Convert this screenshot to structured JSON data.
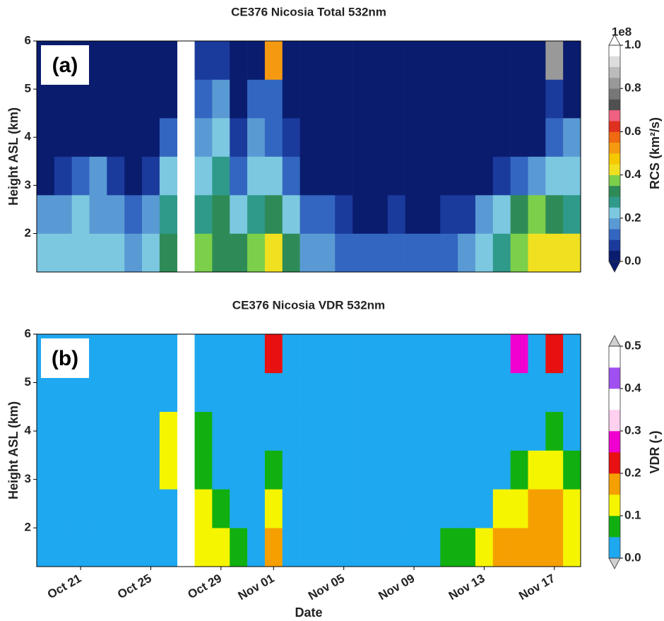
{
  "chart_data": [
    {
      "type": "heatmap",
      "title": "CE376 Nicosia Total 532nm",
      "panel_label": "(a)",
      "ylabel": "Height ASL (km)",
      "xlim": [
        -2.5,
        28.5
      ],
      "ylim": [
        1.2,
        6
      ],
      "yticks": [
        2,
        3,
        4,
        5,
        6
      ],
      "xbins": [
        -2.5,
        -1.5,
        -0.5,
        0.5,
        1.5,
        2.5,
        3.5,
        4.5,
        5.5,
        6.5,
        7.5,
        8.5,
        9.5,
        10.5,
        11.5,
        12.5,
        13.5,
        14.5,
        15.5,
        16.5,
        17.5,
        18.5,
        19.5,
        20.5,
        21.5,
        22.5,
        23.5,
        24.5,
        25.5,
        26.5,
        27.5,
        28.5
      ],
      "ybins": [
        1.2,
        2.0,
        2.8,
        3.6,
        4.4,
        5.2,
        6.0
      ],
      "z": [
        [
          0.22,
          0.2,
          0.2,
          0.22,
          0.2,
          0.18,
          0.2,
          0.3,
          null,
          0.35,
          0.3,
          0.3,
          0.35,
          0.4,
          0.3,
          0.18,
          0.15,
          0.12,
          0.1,
          0.1,
          0.12,
          0.1,
          0.12,
          0.12,
          0.15,
          0.22,
          0.28,
          0.38,
          0.4,
          0.42,
          0.4
        ],
        [
          0.18,
          0.18,
          0.2,
          0.18,
          0.15,
          0.12,
          0.15,
          0.25,
          null,
          0.25,
          0.3,
          0.2,
          0.25,
          0.3,
          0.22,
          0.12,
          0.1,
          0.08,
          0.04,
          0.03,
          0.05,
          0.03,
          0.03,
          0.05,
          0.08,
          0.15,
          0.2,
          0.3,
          0.35,
          0.3,
          0.28
        ],
        [
          0.03,
          0.05,
          0.1,
          0.15,
          0.05,
          0.03,
          0.08,
          0.2,
          null,
          0.2,
          0.25,
          0.12,
          0.2,
          0.22,
          0.12,
          0.03,
          0.02,
          0.02,
          0.02,
          0.02,
          0.02,
          0.02,
          0.02,
          0.02,
          0.02,
          0.03,
          0.05,
          0.1,
          0.18,
          0.2,
          0.2
        ],
        [
          0.02,
          0.02,
          0.02,
          0.02,
          0.02,
          0.02,
          0.03,
          0.1,
          null,
          0.15,
          0.2,
          0.05,
          0.15,
          0.12,
          0.05,
          0.02,
          0.02,
          0.02,
          0.02,
          0.02,
          0.02,
          0.02,
          0.02,
          0.02,
          0.02,
          0.02,
          0.02,
          0.02,
          0.03,
          0.1,
          0.15
        ],
        [
          0.02,
          0.02,
          0.02,
          0.02,
          0.02,
          0.02,
          0.02,
          0.03,
          null,
          0.1,
          0.15,
          0.03,
          0.12,
          0.1,
          0.03,
          0.02,
          0.02,
          0.02,
          0.02,
          0.02,
          0.02,
          0.02,
          0.02,
          0.02,
          0.02,
          0.02,
          0.02,
          0.02,
          0.02,
          0.08,
          0.03
        ],
        [
          0.02,
          0.02,
          0.02,
          0.02,
          0.03,
          0.02,
          0.02,
          0.02,
          null,
          0.05,
          0.08,
          0.02,
          0.03,
          0.5,
          0.03,
          0.02,
          0.02,
          0.02,
          0.02,
          0.02,
          0.02,
          0.02,
          0.02,
          0.02,
          0.02,
          0.02,
          0.02,
          0.02,
          0.02,
          0.8,
          0.02
        ]
      ],
      "colorbar": {
        "label": "RCS (km²/s)",
        "offset_label": "1e8",
        "bounds": [
          0,
          0.05,
          0.1,
          0.15,
          0.2,
          0.25,
          0.3,
          0.35,
          0.4,
          0.45,
          0.5,
          0.55,
          0.6,
          0.65,
          0.7,
          0.75,
          0.8,
          0.85,
          0.9,
          0.95,
          1.0
        ],
        "colors": [
          "#0a1c6e",
          "#1a3a9c",
          "#3366c0",
          "#5a9ad4",
          "#7cc8e0",
          "#2f9a8a",
          "#2e8b57",
          "#7ccf4a",
          "#f0e020",
          "#f5c800",
          "#f59a10",
          "#f06a10",
          "#e03020",
          "#f06080",
          "#505050",
          "#777777",
          "#999999",
          "#bbbbbb",
          "#dddddd",
          "#ffffff"
        ],
        "extend_colors": [
          "#0a1c6e",
          "#ffffff"
        ],
        "ticks": [
          {
            "value": 0,
            "label": "0.0"
          },
          0.2,
          0.4,
          0.6,
          0.8,
          {
            "value": 1,
            "label": "1.0"
          }
        ]
      }
    },
    {
      "type": "heatmap",
      "title": "CE376 Nicosia VDR 532nm",
      "panel_label": "(b)",
      "ylabel": "Height ASL (km)",
      "xlabel": "Date",
      "xlim": [
        -2.5,
        28.5
      ],
      "ylim": [
        1.2,
        6
      ],
      "yticks": [
        2,
        3,
        4,
        5,
        6
      ],
      "xticks": [
        {
          "value": 0,
          "label": "Oct 21"
        },
        {
          "value": 4,
          "label": "Oct 25"
        },
        {
          "value": 8,
          "label": "Oct 29"
        },
        {
          "value": 11,
          "label": "Nov 01"
        },
        {
          "value": 15,
          "label": "Nov 05"
        },
        {
          "value": 19,
          "label": "Nov 09"
        },
        {
          "value": 23,
          "label": "Nov 13"
        },
        {
          "value": 27,
          "label": "Nov 17"
        }
      ],
      "xbins": [
        -2.5,
        -1.5,
        -0.5,
        0.5,
        1.5,
        2.5,
        3.5,
        4.5,
        5.5,
        6.5,
        7.5,
        8.5,
        9.5,
        10.5,
        11.5,
        12.5,
        13.5,
        14.5,
        15.5,
        16.5,
        17.5,
        18.5,
        19.5,
        20.5,
        21.5,
        22.5,
        23.5,
        24.5,
        25.5,
        26.5,
        27.5,
        28.5
      ],
      "ybins": [
        1.2,
        2.0,
        2.8,
        3.6,
        4.4,
        5.2,
        6.0
      ],
      "z": [
        [
          0.02,
          0.02,
          0.02,
          0.02,
          0.02,
          0.02,
          0.02,
          0.02,
          null,
          0.12,
          0.12,
          0.07,
          0.02,
          0.15,
          0.02,
          0.02,
          0.02,
          0.02,
          0.02,
          0.02,
          0.02,
          0.02,
          0.02,
          0.06,
          0.07,
          0.12,
          0.15,
          0.15,
          0.18,
          0.17,
          0.12
        ],
        [
          0.02,
          0.02,
          0.02,
          0.02,
          0.02,
          0.02,
          0.02,
          0.02,
          null,
          0.1,
          0.08,
          0.02,
          0.02,
          0.12,
          0.02,
          0.02,
          0.02,
          0.02,
          0.02,
          0.02,
          0.02,
          0.02,
          0.02,
          0.02,
          0.02,
          0.02,
          0.12,
          0.13,
          0.15,
          0.15,
          0.1
        ],
        [
          0.02,
          0.02,
          0.02,
          0.02,
          0.02,
          0.02,
          0.02,
          0.12,
          null,
          0.08,
          0.02,
          0.02,
          0.02,
          0.07,
          0.02,
          0.02,
          0.02,
          0.02,
          0.02,
          0.02,
          0.02,
          0.02,
          0.02,
          0.02,
          0.02,
          0.02,
          0.02,
          0.07,
          0.1,
          0.12,
          0.07
        ],
        [
          0.02,
          0.02,
          0.02,
          0.02,
          0.02,
          0.02,
          0.02,
          0.1,
          null,
          0.07,
          0.02,
          0.02,
          0.02,
          0.02,
          0.02,
          0.02,
          0.02,
          0.02,
          0.02,
          0.02,
          0.02,
          0.02,
          0.02,
          0.02,
          0.02,
          0.02,
          0.02,
          0.02,
          0.02,
          0.08,
          0.02
        ],
        [
          0.02,
          0.02,
          0.02,
          0.02,
          0.02,
          0.02,
          0.02,
          0.02,
          null,
          0.02,
          0.02,
          0.02,
          0.02,
          0.02,
          0.02,
          0.02,
          0.02,
          0.02,
          0.02,
          0.02,
          0.02,
          0.02,
          0.02,
          0.02,
          0.02,
          0.02,
          0.02,
          0.02,
          0.02,
          0.02,
          0.02
        ],
        [
          0.02,
          0.02,
          0.02,
          0.02,
          0.02,
          0.02,
          0.02,
          0.02,
          null,
          0.02,
          0.02,
          0.02,
          0.02,
          0.2,
          0.02,
          0.02,
          0.02,
          0.02,
          0.02,
          0.02,
          0.02,
          0.02,
          0.02,
          0.02,
          0.02,
          0.02,
          0.02,
          0.27,
          0.02,
          0.2,
          0.02
        ]
      ],
      "colorbar": {
        "label": "VDR (-)",
        "bounds": [
          0,
          0.05,
          0.1,
          0.15,
          0.2,
          0.25,
          0.3,
          0.35,
          0.4,
          0.45,
          0.5
        ],
        "colors": [
          "#1ea8f0",
          "#11b010",
          "#f5f500",
          "#f5a000",
          "#e81010",
          "#f000d0",
          "#ffd0f0",
          "#ffffff",
          "#a050f0",
          "#ffffff"
        ],
        "extend_colors": [
          "#d0d0d0",
          "#d0d0d0"
        ],
        "ticks": [
          {
            "value": 0,
            "label": "0.0"
          },
          0.1,
          0.2,
          0.3,
          0.4,
          0.5
        ]
      }
    }
  ]
}
